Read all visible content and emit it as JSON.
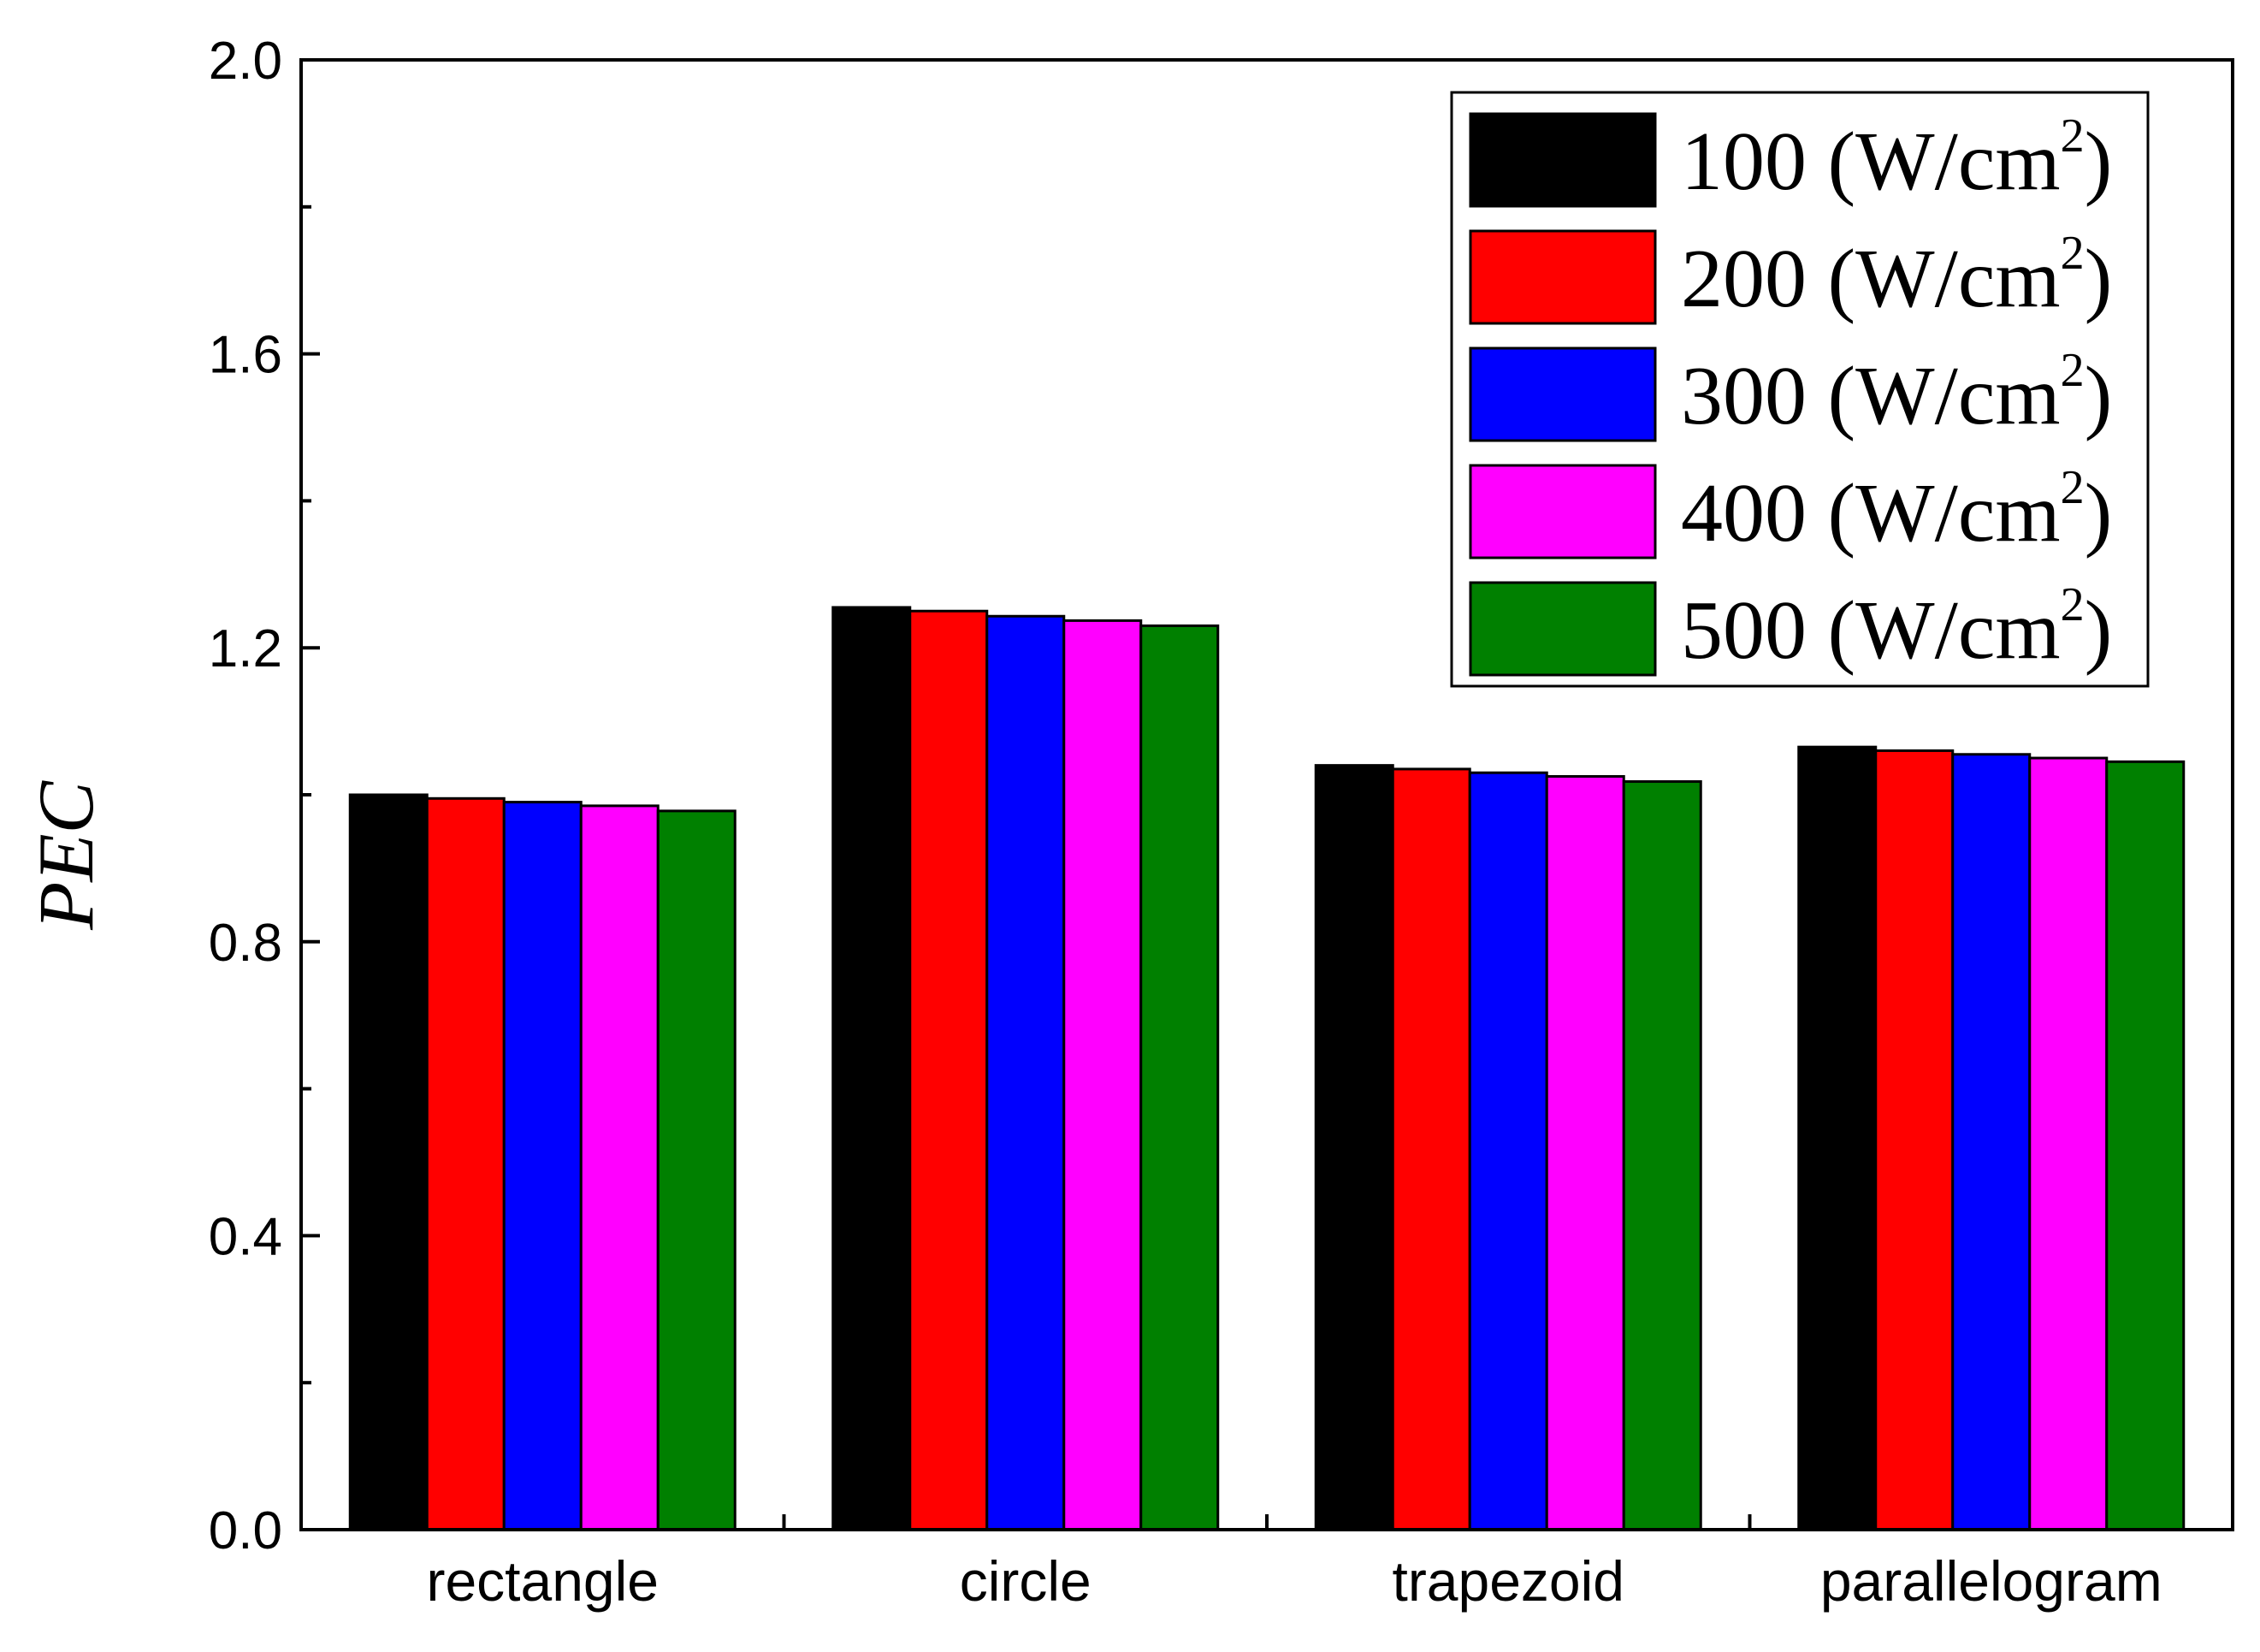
{
  "chart_data": {
    "type": "bar",
    "title": "",
    "xlabel": "",
    "ylabel": "PEC",
    "ylim": [
      0,
      2.0
    ],
    "yticks": [
      "0.0",
      "0.4",
      "0.8",
      "1.2",
      "1.6",
      "2.0"
    ],
    "categories": [
      "rectangle",
      "circle",
      "trapezoid",
      "parallelogram"
    ],
    "legend_placement": "top-right",
    "series": [
      {
        "name": "100 (W/cm",
        "unit_sup": "2",
        "name_close": ")",
        "color": "#000000",
        "values": [
          1.0,
          1.255,
          1.04,
          1.065
        ]
      },
      {
        "name": "200 (W/cm",
        "unit_sup": "2",
        "name_close": ")",
        "color": "#ff0000",
        "values": [
          0.995,
          1.25,
          1.035,
          1.06
        ]
      },
      {
        "name": "300 (W/cm",
        "unit_sup": "2",
        "name_close": ")",
        "color": "#0000ff",
        "values": [
          0.99,
          1.243,
          1.03,
          1.055
        ]
      },
      {
        "name": "400 (W/cm",
        "unit_sup": "2",
        "name_close": ")",
        "color": "#ff00ff",
        "values": [
          0.985,
          1.237,
          1.025,
          1.05
        ]
      },
      {
        "name": "500 (W/cm",
        "unit_sup": "2",
        "name_close": ")",
        "color": "#008000",
        "values": [
          0.978,
          1.23,
          1.018,
          1.045
        ]
      }
    ]
  }
}
